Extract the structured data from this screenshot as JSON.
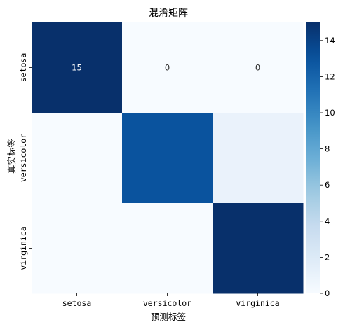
{
  "chart_data": {
    "type": "heatmap",
    "title": "混淆矩阵",
    "xlabel": "预测标签",
    "ylabel": "真实标签",
    "x_categories": [
      "setosa",
      "versicolor",
      "virginica"
    ],
    "y_categories": [
      "setosa",
      "versicolor",
      "virginica"
    ],
    "values": [
      [
        15,
        0,
        0
      ],
      [
        0,
        13,
        1
      ],
      [
        0,
        0,
        15
      ]
    ],
    "annotations": [
      [
        "15",
        "0",
        "0"
      ],
      [
        "",
        "",
        ""
      ],
      [
        "",
        "",
        ""
      ]
    ],
    "colormap": "Blues",
    "colorbar": {
      "min": 0,
      "max": 15,
      "ticks": [
        "0",
        "2",
        "4",
        "6",
        "8",
        "10",
        "12",
        "14"
      ]
    }
  }
}
